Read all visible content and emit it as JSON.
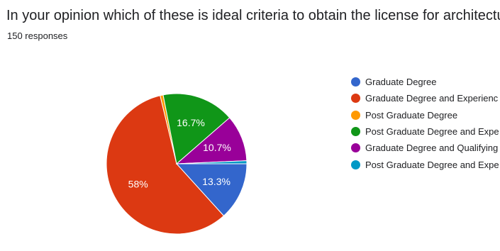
{
  "form": {
    "question": "In your opinion which of these is ideal criteria to obtain the license for architectural prac",
    "responses": "150 responses"
  },
  "chart_data": {
    "type": "pie",
    "title": "In your opinion which of these is ideal criteria to obtain the license for architectural prac",
    "subtitle": "150 responses",
    "legend_position": "right",
    "slices": [
      {
        "label": "Graduate Degree",
        "value": 13.3,
        "display": "13.3%",
        "color": "#3366cc"
      },
      {
        "label": "Graduate Degree and Experienc",
        "value": 58.0,
        "display": "58%",
        "color": "#dc3912"
      },
      {
        "label": "Post Graduate Degree",
        "value": 0.7,
        "display": "",
        "color": "#ff9900"
      },
      {
        "label": "Post Graduate Degree and Expe",
        "value": 16.7,
        "display": "16.7%",
        "color": "#109618"
      },
      {
        "label": "Graduate Degree and Qualifying",
        "value": 10.7,
        "display": "10.7%",
        "color": "#990099"
      },
      {
        "label": "Post Graduate Degree and Expe",
        "value": 0.7,
        "display": "",
        "color": "#0099c6"
      }
    ]
  }
}
